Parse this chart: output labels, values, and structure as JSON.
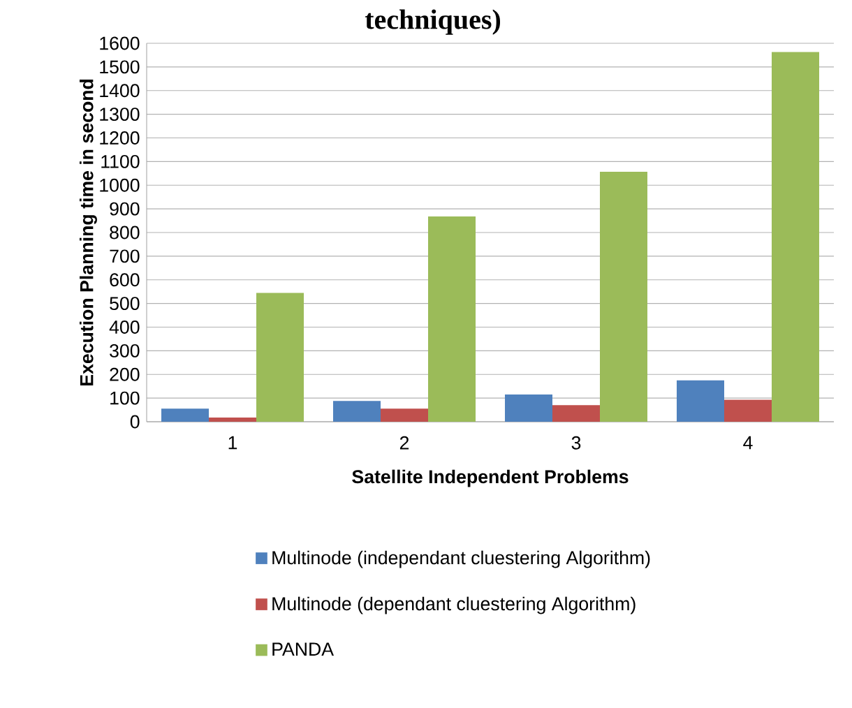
{
  "chart_data": {
    "type": "bar",
    "title": "techniques)",
    "xlabel": "Satellite Independent Problems",
    "ylabel": "Execution Planning time in second",
    "categories": [
      "1",
      "2",
      "3",
      "4"
    ],
    "series": [
      {
        "name": "Multinode (independant cluestering Algorithm)",
        "color": "#4f81bd",
        "values": [
          55,
          88,
          115,
          175
        ]
      },
      {
        "name": "Multinode (dependant cluestering Algorithm)",
        "color": "#c0504d",
        "values": [
          18,
          55,
          70,
          93
        ]
      },
      {
        "name": "PANDA",
        "color": "#9bbb59",
        "values": [
          545,
          868,
          1057,
          1563
        ]
      }
    ],
    "ylim": [
      0,
      1600
    ],
    "yticks": [
      0,
      100,
      200,
      300,
      400,
      500,
      600,
      700,
      800,
      900,
      1000,
      1100,
      1200,
      1300,
      1400,
      1500,
      1600
    ],
    "grid": "y",
    "legend": "bottom"
  }
}
